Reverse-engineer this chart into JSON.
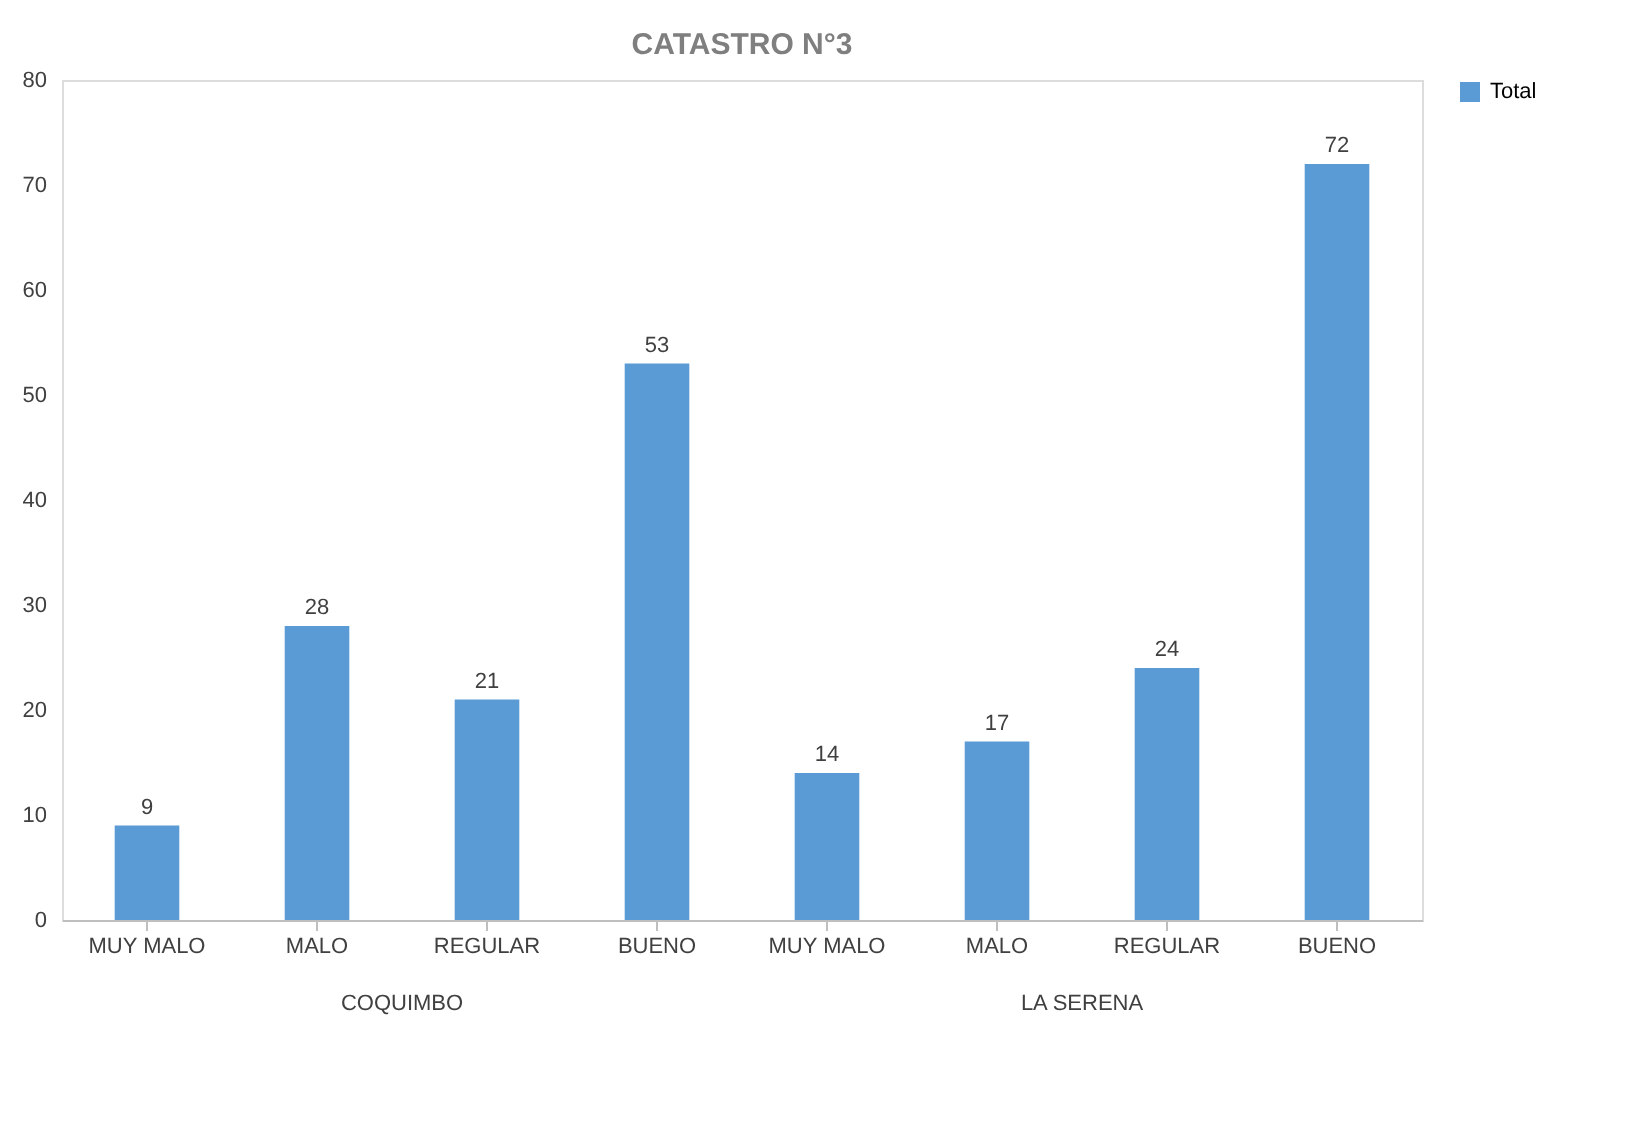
{
  "chart_data": {
    "type": "bar",
    "title": "CATASTRO N°3",
    "categories": [
      "MUY MALO",
      "MALO",
      "REGULAR",
      "BUENO",
      "MUY MALO",
      "MALO",
      "REGULAR",
      "BUENO"
    ],
    "series": [
      {
        "name": "Total",
        "color": "#5b9bd5",
        "values": [
          9,
          28,
          21,
          53,
          14,
          17,
          24,
          72
        ]
      }
    ],
    "annotations": [
      "COQUIMBO",
      "LA SERENA"
    ],
    "ylim": [
      0,
      80
    ],
    "yticks": [
      0,
      10,
      20,
      30,
      40,
      50,
      60,
      70,
      80
    ],
    "grid": false,
    "legend": "right",
    "data_labels": true
  }
}
